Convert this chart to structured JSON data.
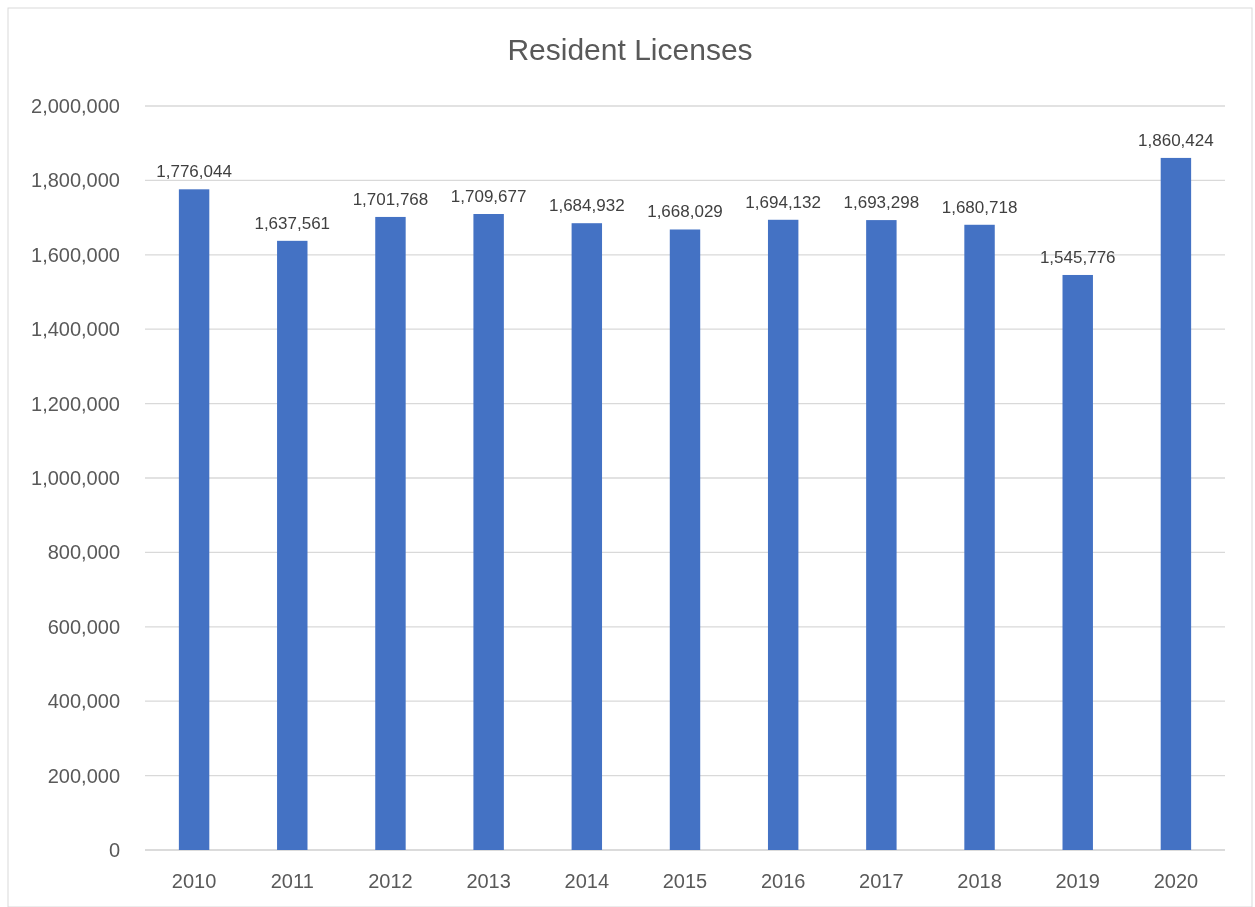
{
  "chart_data": {
    "type": "bar",
    "title": "Resident Licenses",
    "categories": [
      "2010",
      "2011",
      "2012",
      "2013",
      "2014",
      "2015",
      "2016",
      "2017",
      "2018",
      "2019",
      "2020"
    ],
    "values": [
      1776044,
      1637561,
      1701768,
      1709677,
      1684932,
      1668029,
      1694132,
      1693298,
      1680718,
      1545776,
      1860424
    ],
    "color": "#4472c4",
    "ylim": [
      0,
      2000000
    ],
    "yticks": [
      {
        "value": 0,
        "label": "0"
      },
      {
        "value": 200000,
        "label": "200,000"
      },
      {
        "value": 400000,
        "label": "400,000"
      },
      {
        "value": 600000,
        "label": "600,000"
      },
      {
        "value": 800000,
        "label": "800,000"
      },
      {
        "value": 1000000,
        "label": "1,000,000"
      },
      {
        "value": 1200000,
        "label": "1,200,000"
      },
      {
        "value": 1400000,
        "label": "1,400,000"
      },
      {
        "value": 1600000,
        "label": "1,600,000"
      },
      {
        "value": 1800000,
        "label": "1,800,000"
      },
      {
        "value": 2000000,
        "label": "2,000,000"
      }
    ],
    "value_labels": [
      "1,776,044",
      "1,637,561",
      "1,701,768",
      "1,709,677",
      "1,684,932",
      "1,668,029",
      "1,694,132",
      "1,693,298",
      "1,680,718",
      "1,545,776",
      "1,860,424"
    ],
    "grid": "y"
  }
}
